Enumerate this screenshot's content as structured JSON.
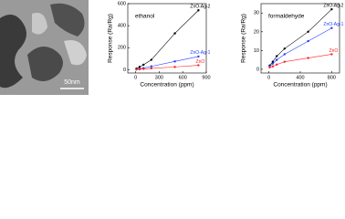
{
  "image": {
    "scale_label": "50nm"
  },
  "chart_data": [
    {
      "type": "line",
      "annotation": "ethanol",
      "xlabel": "Concentration (ppm)",
      "ylabel": "Response (Ra/Rg)",
      "x": [
        10,
        50,
        100,
        200,
        500,
        800
      ],
      "xlim": [
        -100,
        900
      ],
      "xticks": [
        0,
        300,
        600,
        900
      ],
      "ylim": [
        -30,
        600
      ],
      "yticks": [
        0,
        200,
        400,
        600
      ],
      "series": [
        {
          "name": "ZnO-Ag-2",
          "color": "#000000",
          "values": [
            10,
            25,
            45,
            90,
            330,
            540
          ]
        },
        {
          "name": "ZnO-Ag-1",
          "color": "#1f3fff",
          "values": [
            3,
            8,
            15,
            30,
            75,
            120
          ]
        },
        {
          "name": "ZnO",
          "color": "#ff2020",
          "values": [
            2,
            4,
            7,
            12,
            25,
            40
          ]
        }
      ]
    },
    {
      "type": "line",
      "annotation": "formaldehyde",
      "xlabel": "Concentration (ppm)",
      "ylabel": "Response (Ra/Rg)",
      "x": [
        10,
        50,
        100,
        200,
        500,
        800
      ],
      "xlim": [
        -100,
        900
      ],
      "xticks": [
        0,
        400,
        800
      ],
      "ylim": [
        -2,
        35
      ],
      "yticks": [
        0,
        10,
        20,
        30
      ],
      "series": [
        {
          "name": "ZnO-Ag-2",
          "color": "#000000",
          "values": [
            2,
            4,
            7,
            11,
            20,
            32
          ]
        },
        {
          "name": "ZnO-Ag-1",
          "color": "#1f3fff",
          "values": [
            1.5,
            3,
            5,
            8,
            15,
            22
          ]
        },
        {
          "name": "ZnO",
          "color": "#ff2020",
          "values": [
            1,
            1.5,
            2.5,
            4,
            6,
            8
          ]
        }
      ]
    }
  ]
}
